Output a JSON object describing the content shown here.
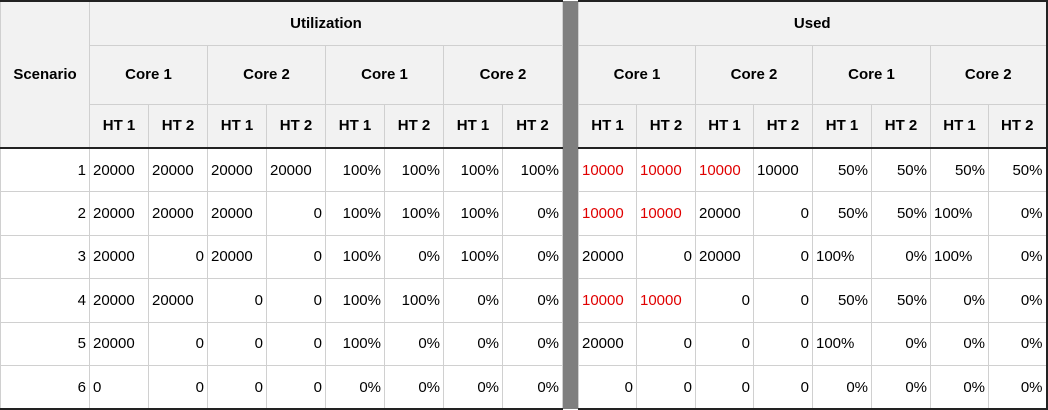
{
  "headers": {
    "scenario": "Scenario",
    "group_utilization": "Utilization",
    "group_used": "Used",
    "cores": [
      "Core 1",
      "Core 2",
      "Core 1",
      "Core 2"
    ],
    "hts": [
      "HT 1",
      "HT 2",
      "HT 1",
      "HT 2",
      "HT 1",
      "HT 2",
      "HT 1",
      "HT 2"
    ]
  },
  "colors": {
    "highlight": "#e00000",
    "separator": "#7f7f7f",
    "header_bg": "#f2f2f2"
  },
  "rows": [
    {
      "scenario": "1",
      "util": [
        "20000",
        "20000",
        "20000",
        "20000",
        "100%",
        "100%",
        "100%",
        "100%"
      ],
      "used": [
        "10000",
        "10000",
        "10000",
        "10000",
        "50%",
        "50%",
        "50%",
        "50%"
      ],
      "used_red": [
        true,
        true,
        true,
        false,
        false,
        false,
        false,
        false
      ]
    },
    {
      "scenario": "2",
      "util": [
        "20000",
        "20000",
        "20000",
        "0",
        "100%",
        "100%",
        "100%",
        "0%"
      ],
      "used": [
        "10000",
        "10000",
        "20000",
        "0",
        "50%",
        "50%",
        "100%",
        "0%"
      ],
      "used_red": [
        true,
        true,
        false,
        false,
        false,
        false,
        false,
        false
      ]
    },
    {
      "scenario": "3",
      "util": [
        "20000",
        "0",
        "20000",
        "0",
        "100%",
        "0%",
        "100%",
        "0%"
      ],
      "used": [
        "20000",
        "0",
        "20000",
        "0",
        "100%",
        "0%",
        "100%",
        "0%"
      ],
      "used_red": [
        false,
        false,
        false,
        false,
        false,
        false,
        false,
        false
      ]
    },
    {
      "scenario": "4",
      "util": [
        "20000",
        "20000",
        "0",
        "0",
        "100%",
        "100%",
        "0%",
        "0%"
      ],
      "used": [
        "10000",
        "10000",
        "0",
        "0",
        "50%",
        "50%",
        "0%",
        "0%"
      ],
      "used_red": [
        true,
        true,
        false,
        false,
        false,
        false,
        false,
        false
      ]
    },
    {
      "scenario": "5",
      "util": [
        "20000",
        "0",
        "0",
        "0",
        "100%",
        "0%",
        "0%",
        "0%"
      ],
      "used": [
        "20000",
        "0",
        "0",
        "0",
        "100%",
        "0%",
        "0%",
        "0%"
      ],
      "used_red": [
        false,
        false,
        false,
        false,
        false,
        false,
        false,
        false
      ]
    },
    {
      "scenario": "6",
      "util": [
        "0",
        "0",
        "0",
        "0",
        "0%",
        "0%",
        "0%",
        "0%"
      ],
      "used": [
        "0",
        "0",
        "0",
        "0",
        "0%",
        "0%",
        "0%",
        "0%"
      ],
      "used_red": [
        false,
        false,
        false,
        false,
        false,
        false,
        false,
        false
      ]
    }
  ]
}
